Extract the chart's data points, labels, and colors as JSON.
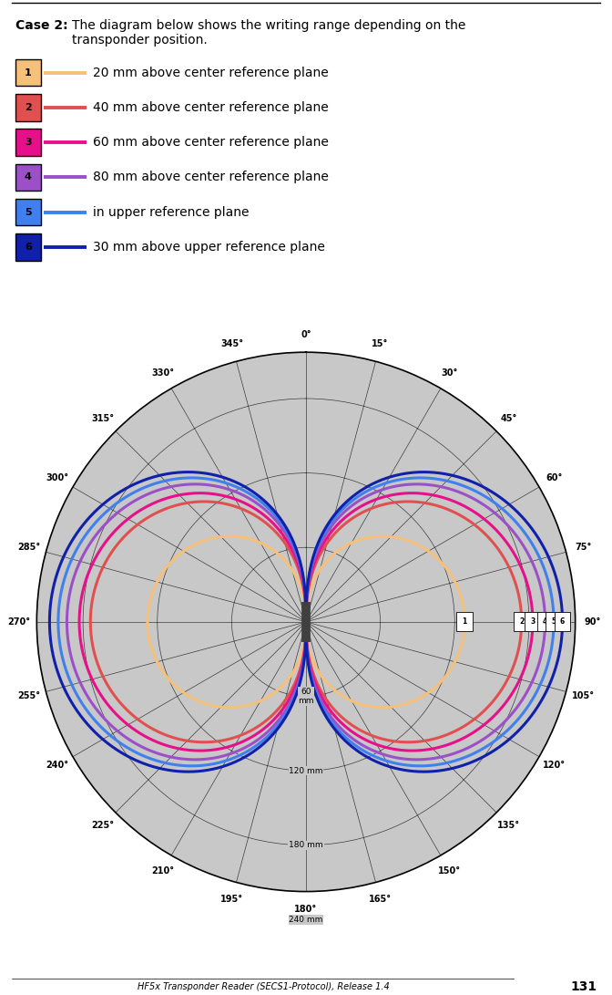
{
  "title_bold": "Case 2:",
  "title_rest": "The diagram below shows the writing range depending on the\ntransponder position.",
  "legend_entries": [
    {
      "num": "1",
      "color": "#F5C07A",
      "label": "20 mm above center reference plane"
    },
    {
      "num": "2",
      "color": "#E05050",
      "label": "40 mm above center reference plane"
    },
    {
      "num": "3",
      "color": "#E8108A",
      "label": "60 mm above center reference plane"
    },
    {
      "num": "4",
      "color": "#9B50C8",
      "label": "80 mm above center reference plane"
    },
    {
      "num": "5",
      "color": "#4080EE",
      "label": "in upper reference plane"
    },
    {
      "num": "6",
      "color": "#1020AA",
      "label": "30 mm above upper reference plane"
    }
  ],
  "r_max": 240,
  "r_circles": [
    60,
    120,
    180,
    240
  ],
  "angle_ticks_deg": [
    0,
    15,
    30,
    45,
    60,
    75,
    90,
    105,
    120,
    135,
    150,
    165,
    180,
    195,
    210,
    225,
    240,
    255,
    270,
    285,
    300,
    315,
    330,
    345
  ],
  "curves": [
    {
      "num": "1",
      "color": "#F5C07A",
      "lw": 2.2,
      "r_max": 128,
      "power": 0.8
    },
    {
      "num": "2",
      "color": "#E05050",
      "lw": 2.2,
      "r_max": 174,
      "power": 0.72
    },
    {
      "num": "3",
      "color": "#E8108A",
      "lw": 2.2,
      "r_max": 183,
      "power": 0.68
    },
    {
      "num": "4",
      "color": "#9B50C8",
      "lw": 2.2,
      "r_max": 193,
      "power": 0.65
    },
    {
      "num": "5",
      "color": "#4080EE",
      "lw": 2.2,
      "r_max": 200,
      "power": 0.63
    },
    {
      "num": "6",
      "color": "#1020AA",
      "lw": 2.2,
      "r_max": 207,
      "power": 0.62
    }
  ],
  "polar_bg": "#c8c8c8",
  "bg_color": "#ffffff",
  "footer": "HF5x Transponder Reader (SECS1-Protocol), Release 1.4",
  "page_num": "131",
  "r_label_positions": [
    {
      "r": 60,
      "label": "60\nmm"
    },
    {
      "r": 120,
      "label": "120 mm"
    },
    {
      "r": 180,
      "label": "180 mm"
    },
    {
      "r": 240,
      "label": "240 mm"
    }
  ]
}
